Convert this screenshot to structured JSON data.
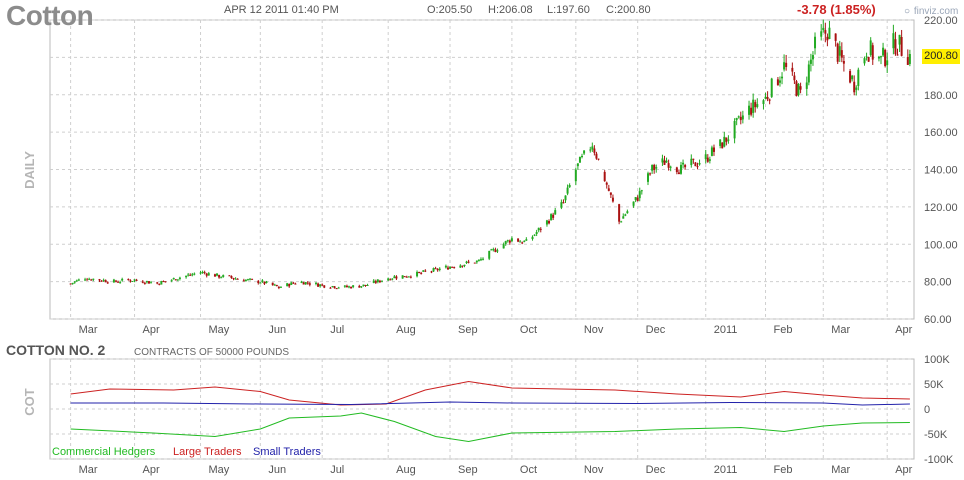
{
  "header": {
    "symbol": "Cotton",
    "datetime": "APR 12 2011 01:40 PM",
    "open": "O:205.50",
    "high": "H:206.08",
    "low": "L:197.60",
    "close": "C:200.80",
    "change": "-3.78 (1.85%)",
    "brand": "finviz.com"
  },
  "current_price_label": "200.80",
  "cot": {
    "title": "COTTON NO. 2",
    "contracts": "CONTRACTS OF 50000 POUNDS"
  },
  "legend": [
    {
      "label": "Commercial Hedgers",
      "color": "#22bb22"
    },
    {
      "label": "Large Traders",
      "color": "#cc2222"
    },
    {
      "label": "Small Traders",
      "color": "#2222aa"
    }
  ],
  "colors": {
    "up": "#22aa22",
    "down": "#aa1111",
    "grid": "#cfcfcf",
    "axis_text": "#555555"
  },
  "chart_data": [
    {
      "type": "candlestick",
      "ylabel": "DAILY",
      "ylim": [
        60,
        220
      ],
      "yticks": [
        60,
        80,
        100,
        120,
        140,
        160,
        180,
        200,
        220
      ],
      "grid": true,
      "x_start": "2010-03-01",
      "x_end": "2011-04-12",
      "xticks": [
        {
          "label": "Mar",
          "date": "2010-03-01"
        },
        {
          "label": "Apr",
          "date": "2010-04-01"
        },
        {
          "label": "May",
          "date": "2010-05-03"
        },
        {
          "label": "Jun",
          "date": "2010-06-01"
        },
        {
          "label": "Jul",
          "date": "2010-07-01"
        },
        {
          "label": "Aug",
          "date": "2010-08-02"
        },
        {
          "label": "Sep",
          "date": "2010-09-01"
        },
        {
          "label": "Oct",
          "date": "2010-10-01"
        },
        {
          "label": "Nov",
          "date": "2010-11-01"
        },
        {
          "label": "Dec",
          "date": "2010-12-01"
        },
        {
          "label": "2011",
          "date": "2011-01-03"
        },
        {
          "label": "Feb",
          "date": "2011-02-01"
        },
        {
          "label": "Mar",
          "date": "2011-03-01"
        },
        {
          "label": "Apr",
          "date": "2011-04-01"
        }
      ],
      "price_trend": [
        [
          "2010-03-01",
          79
        ],
        [
          "2010-03-08",
          82
        ],
        [
          "2010-03-15",
          81
        ],
        [
          "2010-03-22",
          80
        ],
        [
          "2010-04-01",
          81
        ],
        [
          "2010-04-12",
          79
        ],
        [
          "2010-04-22",
          82
        ],
        [
          "2010-05-03",
          85
        ],
        [
          "2010-05-12",
          83
        ],
        [
          "2010-05-24",
          81
        ],
        [
          "2010-06-01",
          80
        ],
        [
          "2010-06-10",
          77
        ],
        [
          "2010-06-20",
          80
        ],
        [
          "2010-07-01",
          78
        ],
        [
          "2010-07-12",
          77
        ],
        [
          "2010-07-22",
          78
        ],
        [
          "2010-08-02",
          82
        ],
        [
          "2010-08-16",
          84
        ],
        [
          "2010-09-01",
          88
        ],
        [
          "2010-09-15",
          91
        ],
        [
          "2010-09-24",
          98
        ],
        [
          "2010-10-01",
          103
        ],
        [
          "2010-10-08",
          101
        ],
        [
          "2010-10-18",
          112
        ],
        [
          "2010-10-26",
          122
        ],
        [
          "2010-11-01",
          140
        ],
        [
          "2010-11-09",
          154
        ],
        [
          "2010-11-16",
          132
        ],
        [
          "2010-11-22",
          112
        ],
        [
          "2010-12-01",
          125
        ],
        [
          "2010-12-08",
          140
        ],
        [
          "2010-12-15",
          145
        ],
        [
          "2010-12-22",
          140
        ],
        [
          "2011-01-03",
          146
        ],
        [
          "2011-01-12",
          155
        ],
        [
          "2011-01-24",
          172
        ],
        [
          "2011-02-01",
          178
        ],
        [
          "2011-02-10",
          195
        ],
        [
          "2011-02-18",
          180
        ],
        [
          "2011-02-25",
          205
        ],
        [
          "2011-03-03",
          215
        ],
        [
          "2011-03-09",
          200
        ],
        [
          "2011-03-16",
          186
        ],
        [
          "2011-03-22",
          205
        ],
        [
          "2011-03-29",
          198
        ],
        [
          "2011-04-05",
          208
        ],
        [
          "2011-04-12",
          200.8
        ]
      ]
    },
    {
      "type": "line",
      "ylabel": "COT",
      "ylim": [
        -100000,
        100000
      ],
      "yticks": [
        {
          "value": 100000,
          "label": "100K"
        },
        {
          "value": 50000,
          "label": "50K"
        },
        {
          "value": 0,
          "label": "0"
        },
        {
          "value": -50000,
          "label": "-50K"
        },
        {
          "value": -100000,
          "label": "-100K"
        }
      ],
      "grid": true,
      "series": [
        {
          "name": "Large Traders",
          "color": "#cc2222",
          "points": [
            [
              "2010-03-01",
              30000
            ],
            [
              "2010-03-20",
              40000
            ],
            [
              "2010-04-20",
              38000
            ],
            [
              "2010-05-10",
              44000
            ],
            [
              "2010-06-01",
              35000
            ],
            [
              "2010-06-15",
              18000
            ],
            [
              "2010-07-10",
              8000
            ],
            [
              "2010-08-01",
              10000
            ],
            [
              "2010-08-20",
              38000
            ],
            [
              "2010-09-10",
              55000
            ],
            [
              "2010-10-01",
              42000
            ],
            [
              "2010-10-25",
              40000
            ],
            [
              "2010-11-20",
              38000
            ],
            [
              "2010-12-20",
              30000
            ],
            [
              "2011-01-20",
              24000
            ],
            [
              "2011-02-10",
              35000
            ],
            [
              "2011-03-01",
              28000
            ],
            [
              "2011-03-20",
              22000
            ],
            [
              "2011-04-12",
              20000
            ]
          ]
        },
        {
          "name": "Small Traders",
          "color": "#2222aa",
          "points": [
            [
              "2010-03-01",
              12000
            ],
            [
              "2010-04-15",
              12000
            ],
            [
              "2010-06-01",
              10000
            ],
            [
              "2010-07-15",
              9000
            ],
            [
              "2010-09-01",
              14000
            ],
            [
              "2010-10-01",
              12000
            ],
            [
              "2010-12-01",
              11000
            ],
            [
              "2011-01-15",
              13000
            ],
            [
              "2011-03-01",
              12000
            ],
            [
              "2011-03-20",
              8000
            ],
            [
              "2011-04-12",
              10000
            ]
          ]
        },
        {
          "name": "Commercial Hedgers",
          "color": "#22bb22",
          "points": [
            [
              "2010-03-01",
              -40000
            ],
            [
              "2010-04-10",
              -48000
            ],
            [
              "2010-05-10",
              -55000
            ],
            [
              "2010-06-01",
              -40000
            ],
            [
              "2010-06-15",
              -18000
            ],
            [
              "2010-07-10",
              -14000
            ],
            [
              "2010-07-20",
              -8000
            ],
            [
              "2010-08-05",
              -25000
            ],
            [
              "2010-08-25",
              -55000
            ],
            [
              "2010-09-10",
              -65000
            ],
            [
              "2010-10-01",
              -48000
            ],
            [
              "2010-11-20",
              -45000
            ],
            [
              "2010-12-20",
              -40000
            ],
            [
              "2011-01-20",
              -37000
            ],
            [
              "2011-02-10",
              -45000
            ],
            [
              "2011-03-01",
              -34000
            ],
            [
              "2011-03-20",
              -28000
            ],
            [
              "2011-04-12",
              -27000
            ]
          ]
        }
      ]
    }
  ]
}
